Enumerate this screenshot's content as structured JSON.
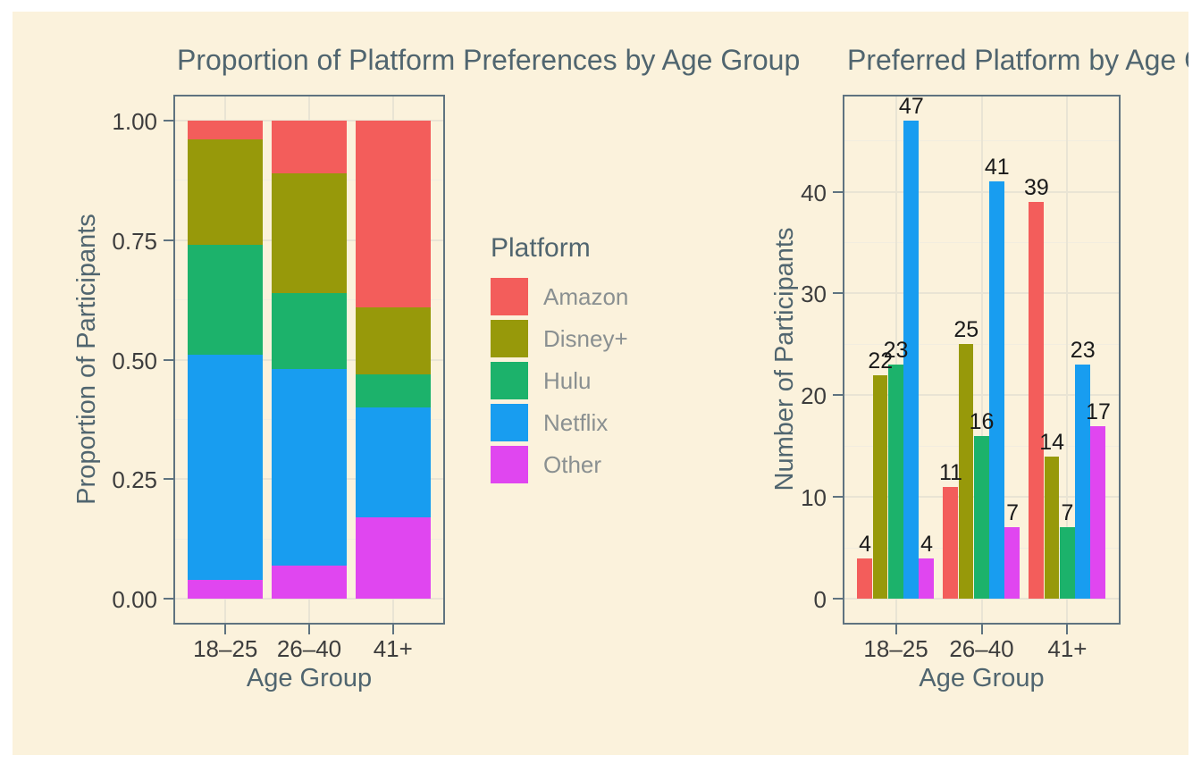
{
  "colors": {
    "page_background": "#ffffff",
    "figure_background": "#FBF2DC",
    "grid_major": "#E9E4D4",
    "grid_minor": "#F2EDDF",
    "panel_border": "#5F7380",
    "tick_mark": "#5F7380",
    "title_text": "#50656F",
    "tick_label_text": "#3D3D3D",
    "bar_label_text": "#1A1A1A",
    "legend_label_text": "#8A9091"
  },
  "palette": {
    "Amazon": "#F35D5B",
    "Disney+": "#97990A",
    "Hulu": "#1CB26B",
    "Netflix": "#189DF0",
    "Other": "#E046F0"
  },
  "legend": {
    "title": "Platform",
    "items": [
      {
        "label": "Amazon"
      },
      {
        "label": "Disney+"
      },
      {
        "label": "Hulu"
      },
      {
        "label": "Netflix"
      },
      {
        "label": "Other"
      }
    ]
  },
  "chart_data": [
    {
      "type": "bar",
      "variant": "stacked-proportion",
      "title": "Proportion of Platform Preferences by Age Group",
      "xlabel": "Age Group",
      "ylabel": "Proportion of Participants",
      "categories": [
        "18–25",
        "26–40",
        "41+"
      ],
      "series": [
        {
          "name": "Amazon",
          "values": [
            0.04,
            0.11,
            0.39
          ]
        },
        {
          "name": "Disney+",
          "values": [
            0.22,
            0.25,
            0.14
          ]
        },
        {
          "name": "Hulu",
          "values": [
            0.23,
            0.16,
            0.07
          ]
        },
        {
          "name": "Netflix",
          "values": [
            0.47,
            0.41,
            0.23
          ]
        },
        {
          "name": "Other",
          "values": [
            0.04,
            0.07,
            0.17
          ]
        }
      ],
      "stack_order_bottom_to_top": [
        "Other",
        "Netflix",
        "Hulu",
        "Disney+",
        "Amazon"
      ],
      "ylim": [
        0,
        1
      ],
      "yticks": {
        "values": [
          0,
          0.25,
          0.5,
          0.75,
          1.0
        ],
        "labels": [
          "0.00",
          "0.25",
          "0.50",
          "0.75",
          "1.00"
        ]
      },
      "yminor": [
        0.125,
        0.375,
        0.625,
        0.875
      ],
      "grid": "on",
      "legend_position": "right-of-panel",
      "bar_labels": false
    },
    {
      "type": "bar",
      "variant": "grouped",
      "title": "Preferred Platform by Age Group",
      "title_visible": "Preferred Platform by Age G",
      "xlabel": "Age Group",
      "ylabel": "Number of Participants",
      "categories": [
        "18–25",
        "26–40",
        "41+"
      ],
      "series": [
        {
          "name": "Amazon",
          "values": [
            4,
            11,
            39
          ]
        },
        {
          "name": "Disney+",
          "values": [
            22,
            25,
            14
          ]
        },
        {
          "name": "Hulu",
          "values": [
            23,
            16,
            7
          ]
        },
        {
          "name": "Netflix",
          "values": [
            47,
            41,
            23
          ]
        },
        {
          "name": "Other",
          "values": [
            4,
            7,
            17
          ]
        }
      ],
      "ylim": [
        0,
        47
      ],
      "yticks": {
        "values": [
          0,
          10,
          20,
          30,
          40
        ],
        "labels": [
          "0",
          "10",
          "20",
          "30",
          "40"
        ]
      },
      "yminor": [
        5,
        15,
        25,
        35,
        45
      ],
      "grid": "on",
      "legend_position": "none",
      "bar_labels": true
    }
  ]
}
